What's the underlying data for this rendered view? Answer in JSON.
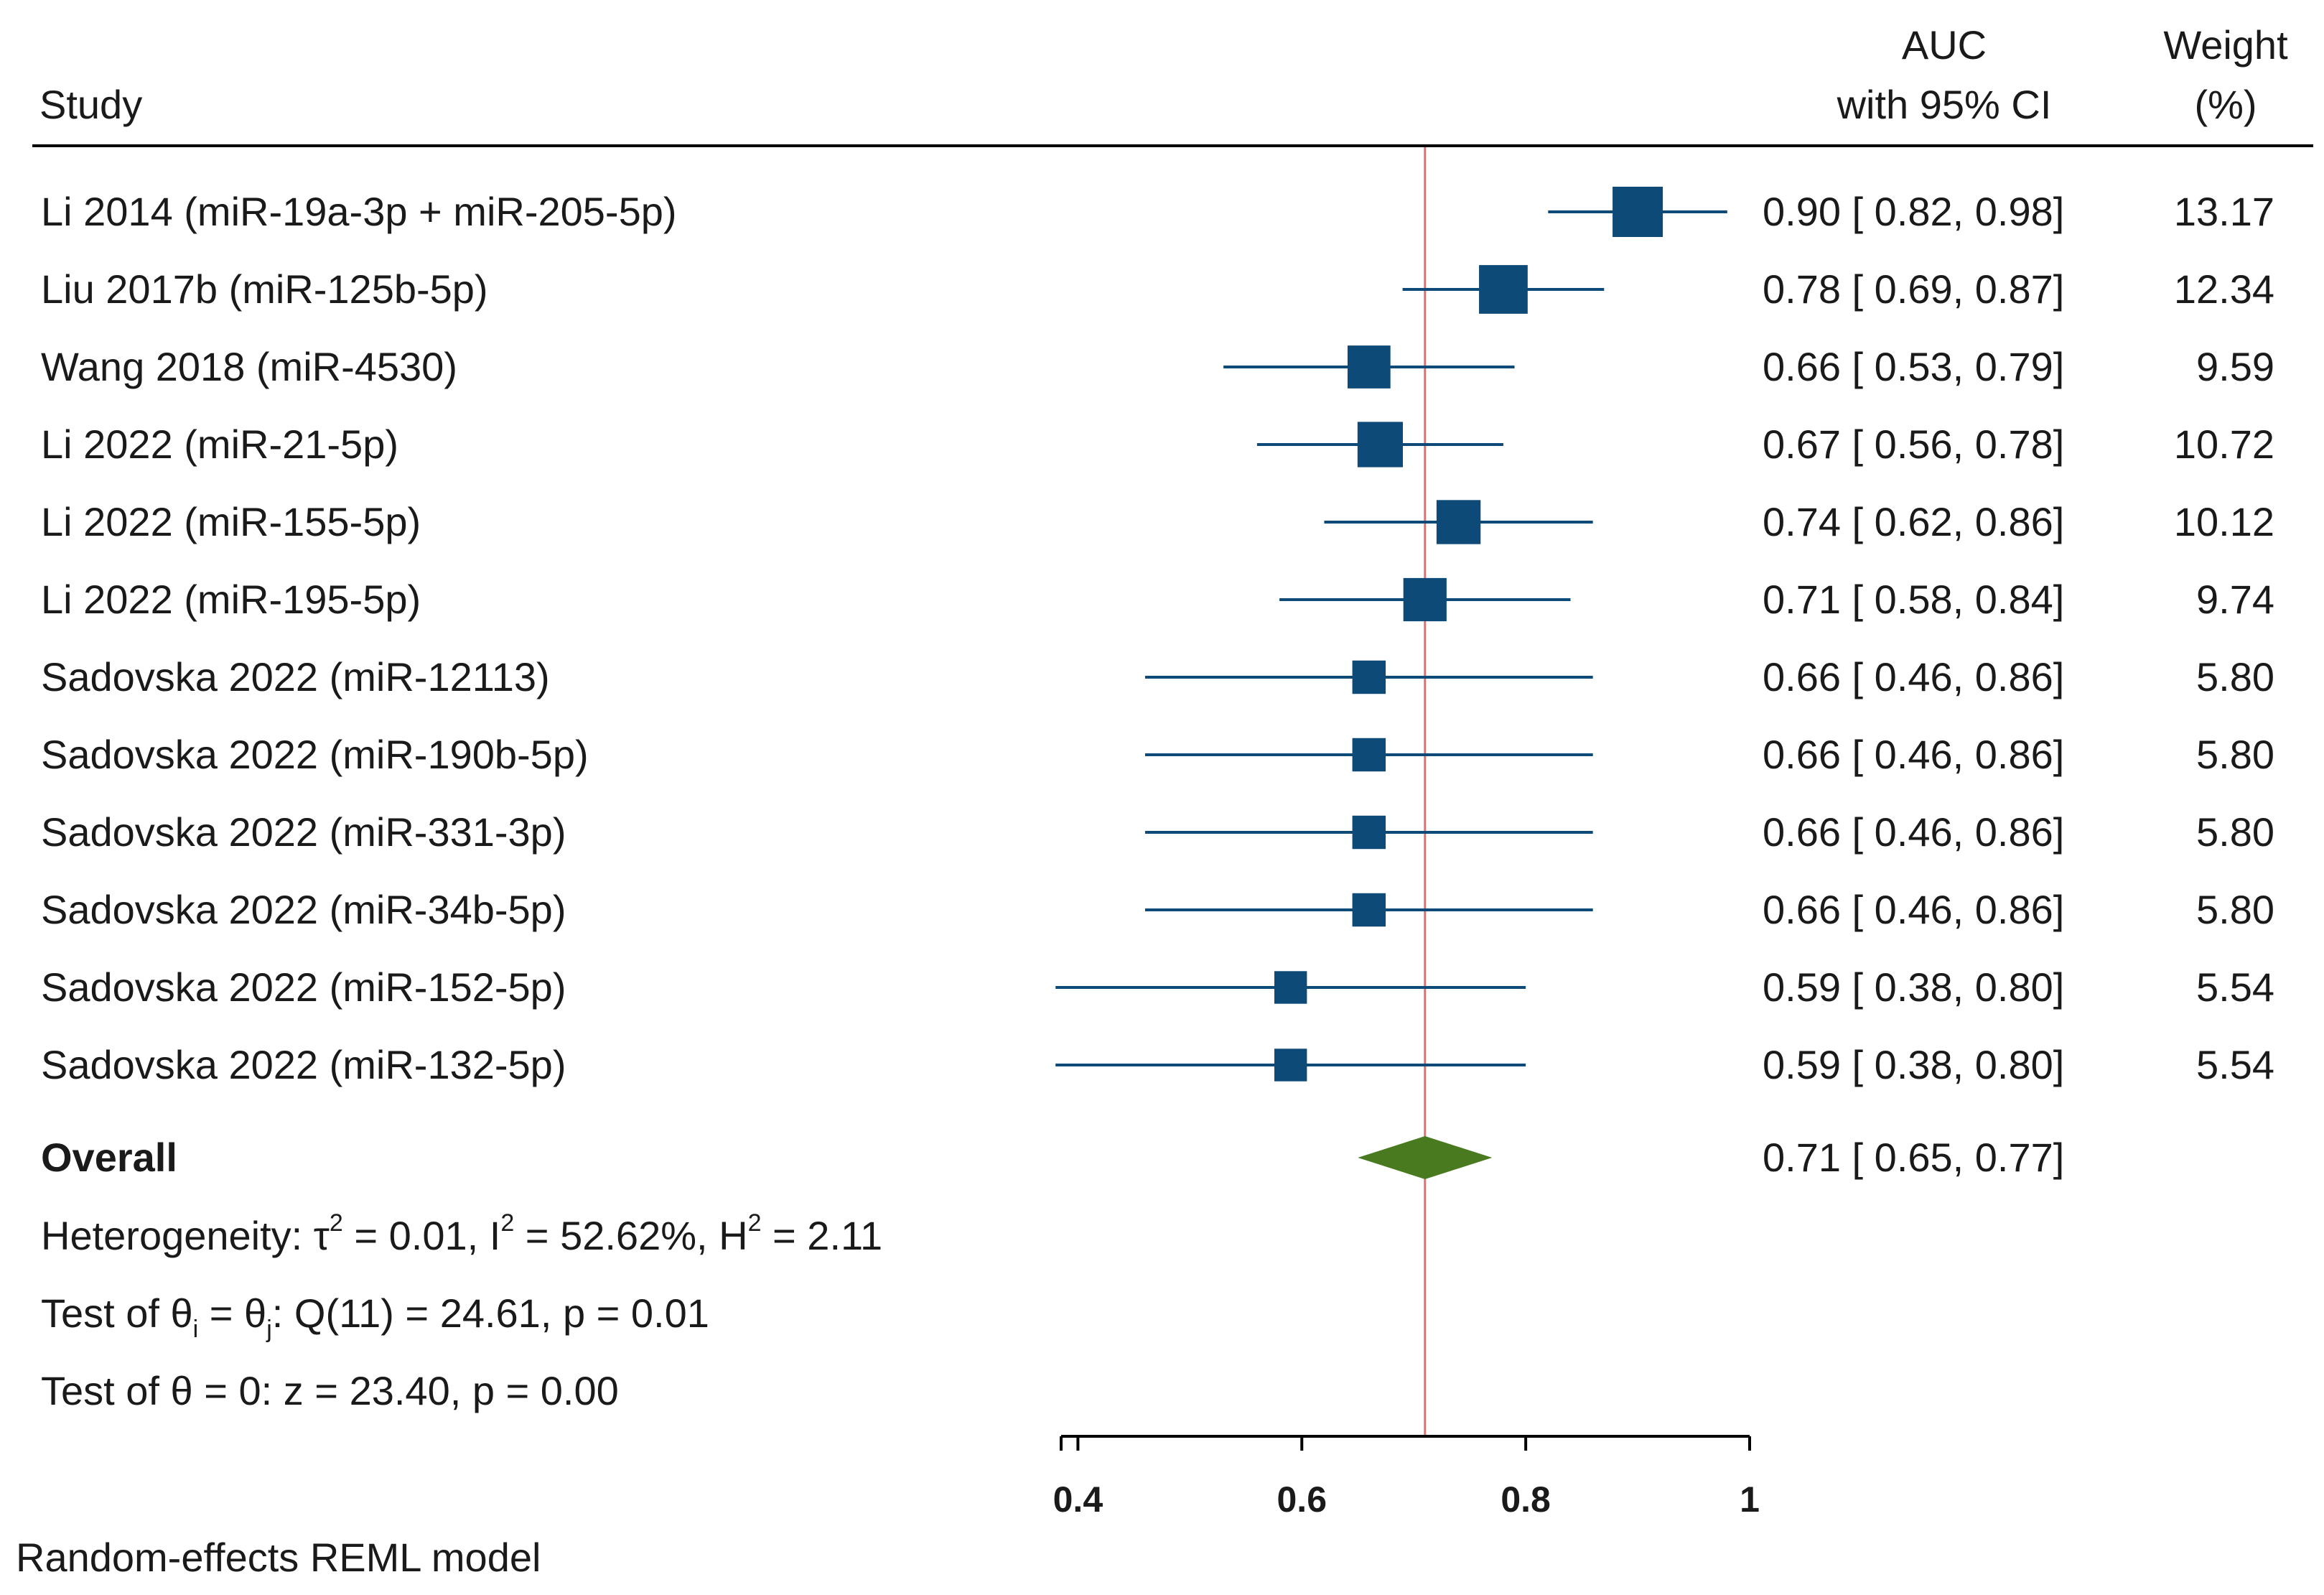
{
  "chart_data": {
    "type": "forest",
    "headers": {
      "study": "Study",
      "auc_line1": "AUC",
      "auc_line2": "with 95% CI",
      "weight_line1": "Weight",
      "weight_line2": "(%)"
    },
    "studies": [
      {
        "label": "Li 2014 (miR-19a-3p + miR-205-5p)",
        "auc": 0.9,
        "lo": 0.82,
        "hi": 0.98,
        "ci_text": "0.90 [ 0.82,  0.98]",
        "weight": 13.17,
        "weight_text": "13.17"
      },
      {
        "label": "Liu 2017b (miR-125b-5p)",
        "auc": 0.78,
        "lo": 0.69,
        "hi": 0.87,
        "ci_text": "0.78 [ 0.69,  0.87]",
        "weight": 12.34,
        "weight_text": "12.34"
      },
      {
        "label": "Wang 2018 (miR-4530)",
        "auc": 0.66,
        "lo": 0.53,
        "hi": 0.79,
        "ci_text": "0.66 [ 0.53,  0.79]",
        "weight": 9.59,
        "weight_text": "9.59"
      },
      {
        "label": "Li 2022 (miR-21-5p)",
        "auc": 0.67,
        "lo": 0.56,
        "hi": 0.78,
        "ci_text": "0.67 [ 0.56,  0.78]",
        "weight": 10.72,
        "weight_text": "10.72"
      },
      {
        "label": "Li 2022 (miR-155-5p)",
        "auc": 0.74,
        "lo": 0.62,
        "hi": 0.86,
        "ci_text": "0.74 [ 0.62,  0.86]",
        "weight": 10.12,
        "weight_text": "10.12"
      },
      {
        "label": "Li 2022 (miR-195-5p)",
        "auc": 0.71,
        "lo": 0.58,
        "hi": 0.84,
        "ci_text": "0.71 [ 0.58,  0.84]",
        "weight": 9.74,
        "weight_text": "9.74"
      },
      {
        "label": "Sadovska 2022 (miR-12113)",
        "auc": 0.66,
        "lo": 0.46,
        "hi": 0.86,
        "ci_text": "0.66 [ 0.46,  0.86]",
        "weight": 5.8,
        "weight_text": "5.80"
      },
      {
        "label": "Sadovska 2022 (miR-190b-5p)",
        "auc": 0.66,
        "lo": 0.46,
        "hi": 0.86,
        "ci_text": "0.66 [ 0.46,  0.86]",
        "weight": 5.8,
        "weight_text": "5.80"
      },
      {
        "label": "Sadovska 2022 (miR-331-3p)",
        "auc": 0.66,
        "lo": 0.46,
        "hi": 0.86,
        "ci_text": "0.66 [ 0.46,  0.86]",
        "weight": 5.8,
        "weight_text": "5.80"
      },
      {
        "label": "Sadovska 2022 (miR-34b-5p)",
        "auc": 0.66,
        "lo": 0.46,
        "hi": 0.86,
        "ci_text": "0.66 [ 0.46,  0.86]",
        "weight": 5.8,
        "weight_text": "5.80"
      },
      {
        "label": "Sadovska 2022 (miR-152-5p)",
        "auc": 0.59,
        "lo": 0.38,
        "hi": 0.8,
        "ci_text": "0.59 [ 0.38,  0.80]",
        "weight": 5.54,
        "weight_text": "5.54"
      },
      {
        "label": "Sadovska 2022 (miR-132-5p)",
        "auc": 0.59,
        "lo": 0.38,
        "hi": 0.8,
        "ci_text": "0.59 [ 0.38,  0.80]",
        "weight": 5.54,
        "weight_text": "5.54"
      }
    ],
    "overall": {
      "label": "Overall",
      "auc": 0.71,
      "lo": 0.65,
      "hi": 0.77,
      "ci_text": "0.71 [ 0.65,  0.77]"
    },
    "heterogeneity": {
      "prefix": "Heterogeneity: τ",
      "tau2_value": " = 0.01, I",
      "i2_value": " = 52.62%, H",
      "h2_value": " = 2.11",
      "sup": "2"
    },
    "test_theta_ij": {
      "prefix": "Test of θ",
      "sub_i": "i",
      "middle": " = θ",
      "sub_j": "j",
      "suffix": ": Q(11) = 24.61, p = 0.01"
    },
    "test_theta_zero": "Test of θ = 0: z = 23.40, p = 0.00",
    "model": "Random-effects REML model",
    "x_axis": {
      "ticks": [
        0.4,
        0.6,
        0.8,
        1
      ],
      "tick_labels": [
        "0.4",
        "0.6",
        "0.8",
        "1"
      ],
      "xlim": [
        0.385,
        1.0
      ]
    },
    "reference_line": 0.71,
    "colors": {
      "marker": "#0d4a77",
      "ci_line": "#0d4a77",
      "diamond": "#4a7a1f",
      "reference": "#e07070",
      "axis": "#000000"
    }
  }
}
